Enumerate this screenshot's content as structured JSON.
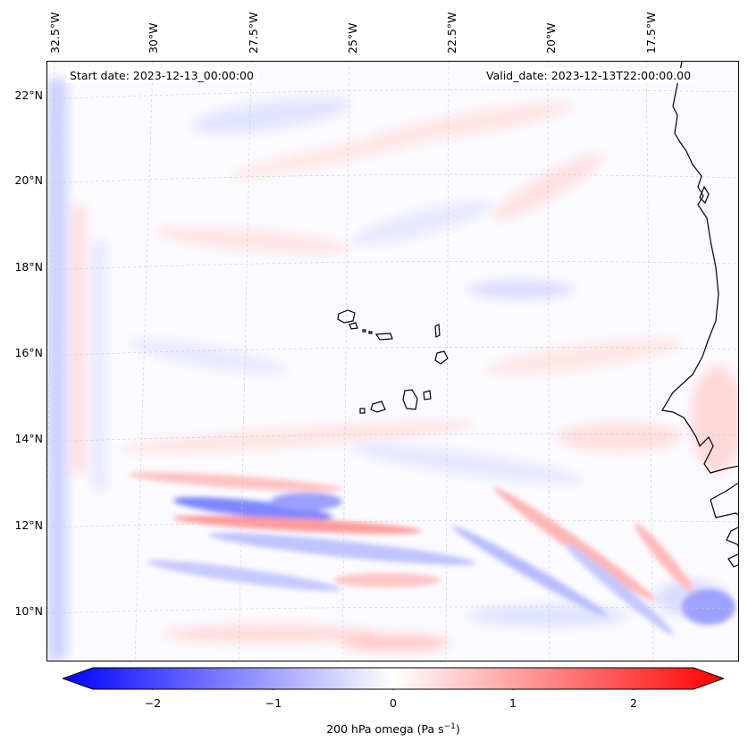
{
  "map": {
    "start_date": "Start date: 2023-12-13_00:00:00",
    "valid_date": "Valid_date: 2023-12-13T22:00:00.00",
    "lon_labels": [
      "32.5°W",
      "30°W",
      "27.5°W",
      "25°W",
      "22.5°W",
      "20°W",
      "17.5°W"
    ],
    "lat_labels": [
      "22°N",
      "20°N",
      "18°N",
      "16°N",
      "14°N",
      "12°N",
      "10°N"
    ],
    "field": "200 hPa omega",
    "colors": {
      "neg": "#0000ff",
      "zero": "#ffffff",
      "pos": "#ff0000",
      "coast": "#000000",
      "grid": "#c8c8c8"
    }
  },
  "colorbar": {
    "ticks": [
      "−2",
      "−1",
      "0",
      "1",
      "2"
    ],
    "label_main": "200 hPa omega (Pa s",
    "label_exp": "−1",
    "label_close": ")",
    "range": [
      -2.6,
      2.6
    ]
  }
}
